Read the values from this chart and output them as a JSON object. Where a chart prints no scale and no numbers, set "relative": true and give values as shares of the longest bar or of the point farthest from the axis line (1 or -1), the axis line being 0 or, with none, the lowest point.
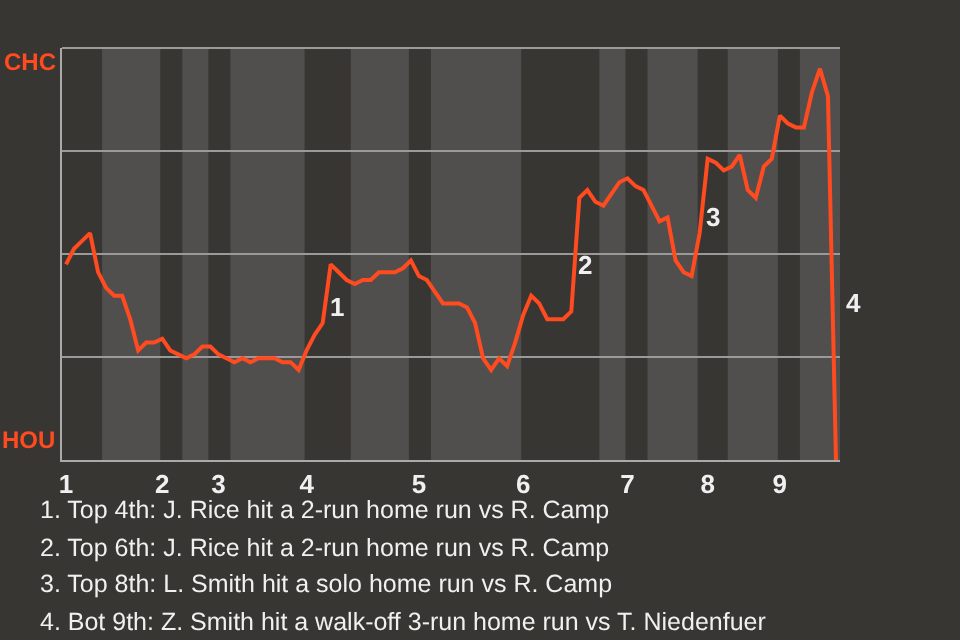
{
  "chart_data": {
    "type": "line",
    "relative": true,
    "categories": [
      "1",
      null,
      null,
      null,
      null,
      null,
      null,
      null,
      null,
      null,
      null,
      null,
      "2",
      null,
      null,
      null,
      null,
      null,
      null,
      "3",
      null,
      null,
      null,
      null,
      null,
      null,
      null,
      null,
      null,
      null,
      "4",
      null,
      null,
      null,
      null,
      null,
      null,
      null,
      null,
      null,
      null,
      null,
      null,
      null,
      "5",
      null,
      null,
      null,
      null,
      null,
      null,
      null,
      null,
      null,
      null,
      null,
      null,
      "6",
      null,
      null,
      null,
      null,
      null,
      null,
      null,
      null,
      null,
      null,
      null,
      null,
      "7",
      null,
      null,
      null,
      null,
      null,
      null,
      null,
      null,
      null,
      "8",
      null,
      null,
      null,
      null,
      null,
      null,
      null,
      null,
      "9",
      null,
      null,
      null,
      null,
      null,
      null,
      null
    ],
    "series": [
      {
        "color": "#ff4b1f",
        "values": [
          0.5,
          0.54,
          0.56,
          0.58,
          0.48,
          0.44,
          0.42,
          0.42,
          0.36,
          0.28,
          0.3,
          0.3,
          0.31,
          0.28,
          0.27,
          0.26,
          0.27,
          0.29,
          0.29,
          0.27,
          0.26,
          0.25,
          0.26,
          0.25,
          0.26,
          0.26,
          0.26,
          0.25,
          0.25,
          0.23,
          0.28,
          0.32,
          0.35,
          0.5,
          0.48,
          0.46,
          0.45,
          0.46,
          0.46,
          0.48,
          0.48,
          0.48,
          0.49,
          0.51,
          0.47,
          0.46,
          0.43,
          0.4,
          0.4,
          0.4,
          0.39,
          0.35,
          0.26,
          0.23,
          0.26,
          0.24,
          0.3,
          0.37,
          0.42,
          0.4,
          0.36,
          0.36,
          0.36,
          0.38,
          0.67,
          0.69,
          0.66,
          0.65,
          0.68,
          0.71,
          0.72,
          0.7,
          0.69,
          0.65,
          0.61,
          0.62,
          0.51,
          0.48,
          0.47,
          0.58,
          0.77,
          0.76,
          0.74,
          0.75,
          0.78,
          0.69,
          0.67,
          0.75,
          0.77,
          0.88,
          0.86,
          0.85,
          0.85,
          0.94,
          1,
          0.93,
          0
        ]
      }
    ],
    "grid": "y",
    "annotations": [
      "CHC",
      "HOU",
      "1",
      "2",
      "3",
      "4",
      "1. Top 4th: J. Rice hit a 2-run home run vs R. Camp",
      "2. Top 6th: J. Rice hit a 2-run home run vs R. Camp",
      "3. Top 8th: L. Smith hit a solo home run vs R. Camp",
      "4. Bot 9th: Z. Smith hit a walk-off 3-run home run vs T. Niedenfuer"
    ]
  }
}
